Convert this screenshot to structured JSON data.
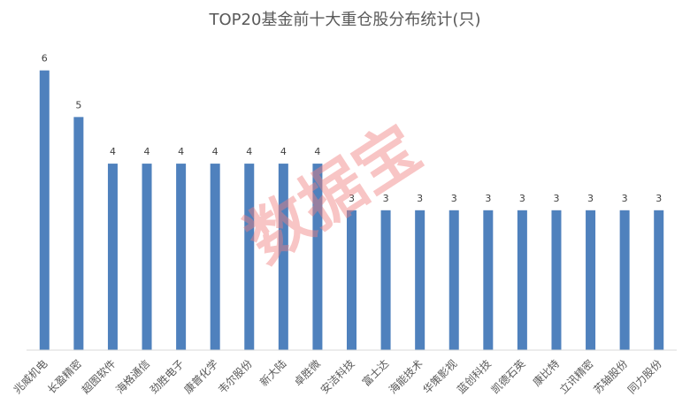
{
  "chart_data": {
    "type": "bar",
    "title": "TOP20基金前十大重仓股分布统计(只)",
    "categories": [
      "兆威机电",
      "长盈精密",
      "超图软件",
      "海格通信",
      "劲胜电子",
      "康普化学",
      "韦尔股份",
      "新大陆",
      "卓胜微",
      "安洁科技",
      "富士达",
      "海能技术",
      "华策影视",
      "蓝创科技",
      "凯德石英",
      "康比特",
      "立讯精密",
      "苏轴股份",
      "同力股份"
    ],
    "values": [
      6,
      5,
      4,
      4,
      4,
      4,
      4,
      4,
      4,
      3,
      3,
      3,
      3,
      3,
      3,
      3,
      3,
      3,
      3
    ],
    "ylim": [
      0,
      6.6
    ],
    "grid": false,
    "bar_color": "#4f81bd"
  },
  "watermark": {
    "text": "数据宝",
    "color": "#f08080"
  }
}
